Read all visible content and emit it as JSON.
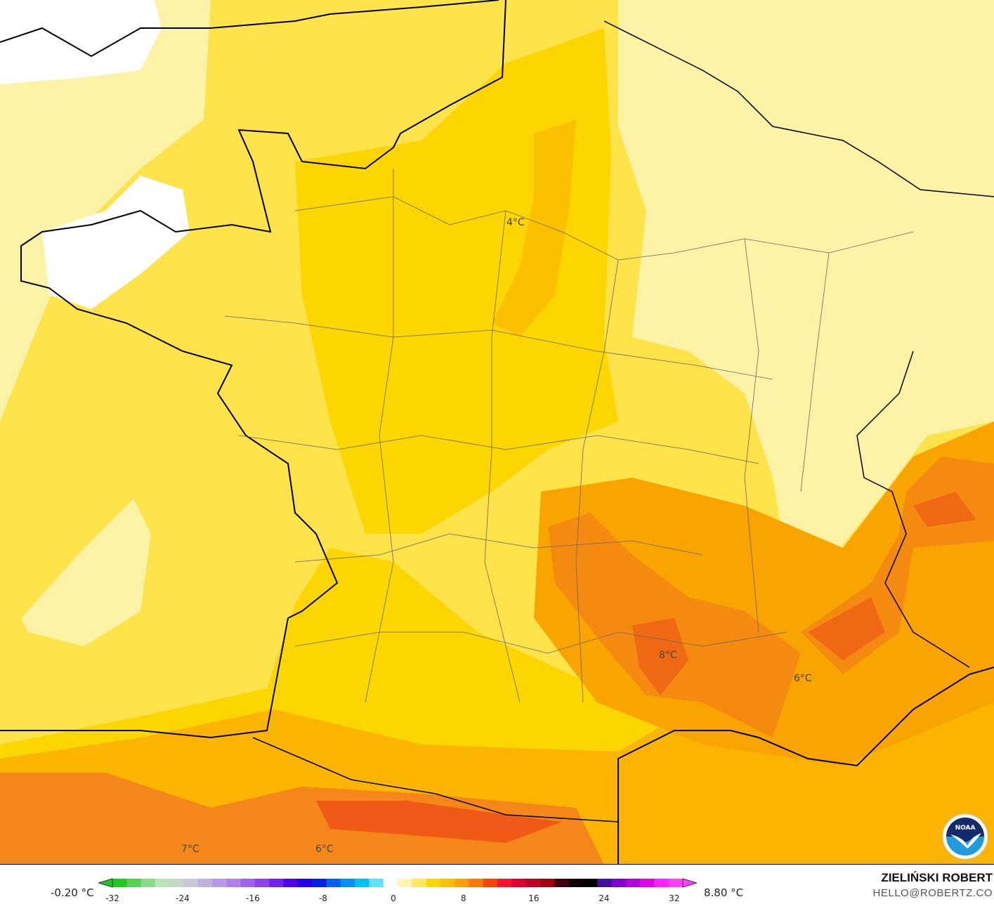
{
  "map": {
    "labels": [
      {
        "text": "4°C"
      },
      {
        "text": "8°C"
      },
      {
        "text": "6°C"
      },
      {
        "text": "7°C"
      },
      {
        "text": "6°C"
      }
    ],
    "colors": {
      "pale": "#fdf3a6",
      "yellow": "#fee34a",
      "gold": "#fdd600",
      "amber": "#fbbc00",
      "orange": "#f9a400",
      "deep_orange": "#f57b12",
      "red_orange": "#f05a16",
      "water_cold": "#ffffff"
    }
  },
  "legend": {
    "min_label": "-0.20 °C",
    "max_label": "8.80 °C",
    "ticks": [
      "-32",
      "-24",
      "-16",
      "-8",
      "0",
      "8",
      "16",
      "24",
      "32"
    ],
    "range": [
      -32,
      32
    ]
  },
  "branding": {
    "author": "ZIELIŃSKI ROBERT",
    "email": "HELLO@ROBERTZ.CO",
    "logo": "NOAA"
  }
}
